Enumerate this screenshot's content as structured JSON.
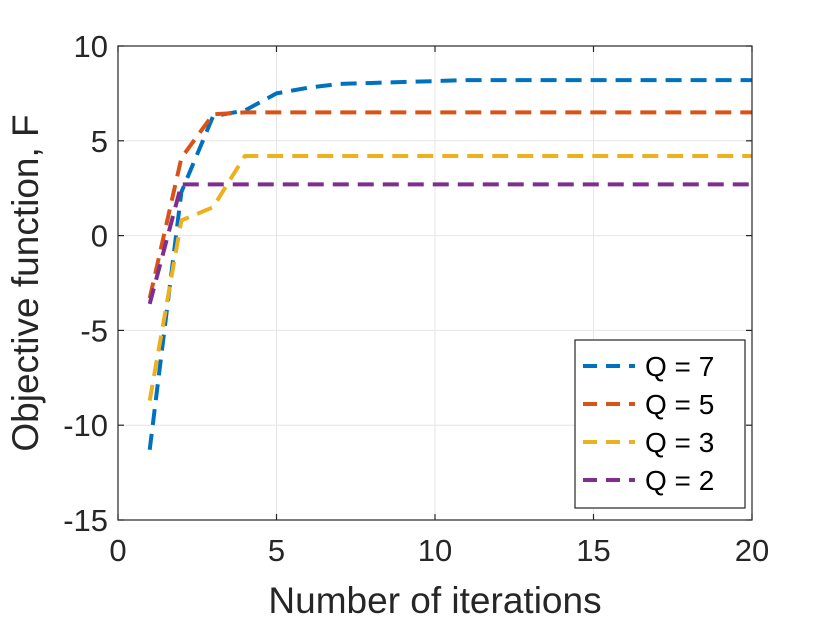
{
  "chart_data": {
    "type": "line",
    "title": "",
    "xlabel": "Number of iterations",
    "ylabel": "Objective function, F",
    "xlim": [
      0,
      20
    ],
    "ylim": [
      -15,
      10
    ],
    "xticks": [
      0,
      5,
      10,
      15,
      20
    ],
    "yticks": [
      -15,
      -10,
      -5,
      0,
      5,
      10
    ],
    "grid": true,
    "legend_location": "bottom-right",
    "series": [
      {
        "name": "Q = 7",
        "color": "#0072BD",
        "dash": "dashed",
        "x": [
          1,
          2,
          3,
          4,
          5,
          6,
          7,
          8,
          9,
          10,
          11,
          12,
          13,
          14,
          15,
          16,
          17,
          18,
          19,
          20
        ],
        "y": [
          -11.3,
          2.3,
          6.3,
          6.6,
          7.5,
          7.8,
          8.0,
          8.05,
          8.1,
          8.15,
          8.2,
          8.2,
          8.2,
          8.2,
          8.2,
          8.2,
          8.2,
          8.2,
          8.2,
          8.2
        ]
      },
      {
        "name": "Q = 5",
        "color": "#D95319",
        "dash": "dashed",
        "x": [
          1,
          2,
          3,
          4,
          5,
          6,
          7,
          8,
          9,
          10,
          11,
          12,
          13,
          14,
          15,
          16,
          17,
          18,
          19,
          20
        ],
        "y": [
          -3.3,
          4.1,
          6.4,
          6.5,
          6.5,
          6.5,
          6.5,
          6.5,
          6.5,
          6.5,
          6.5,
          6.5,
          6.5,
          6.5,
          6.5,
          6.5,
          6.5,
          6.5,
          6.5,
          6.5
        ]
      },
      {
        "name": "Q = 3",
        "color": "#EDB120",
        "dash": "dashed",
        "x": [
          1,
          2,
          3,
          4,
          5,
          6,
          7,
          8,
          9,
          10,
          11,
          12,
          13,
          14,
          15,
          16,
          17,
          18,
          19,
          20
        ],
        "y": [
          -8.7,
          0.8,
          1.5,
          4.2,
          4.2,
          4.2,
          4.2,
          4.2,
          4.2,
          4.2,
          4.2,
          4.2,
          4.2,
          4.2,
          4.2,
          4.2,
          4.2,
          4.2,
          4.2,
          4.2
        ]
      },
      {
        "name": "Q = 2",
        "color": "#7E2F8E",
        "dash": "dashed",
        "x": [
          1,
          2,
          3,
          4,
          5,
          6,
          7,
          8,
          9,
          10,
          11,
          12,
          13,
          14,
          15,
          16,
          17,
          18,
          19,
          20
        ],
        "y": [
          -3.6,
          2.7,
          2.7,
          2.7,
          2.7,
          2.7,
          2.7,
          2.7,
          2.7,
          2.7,
          2.7,
          2.7,
          2.7,
          2.7,
          2.7,
          2.7,
          2.7,
          2.7,
          2.7,
          2.7
        ]
      }
    ]
  }
}
